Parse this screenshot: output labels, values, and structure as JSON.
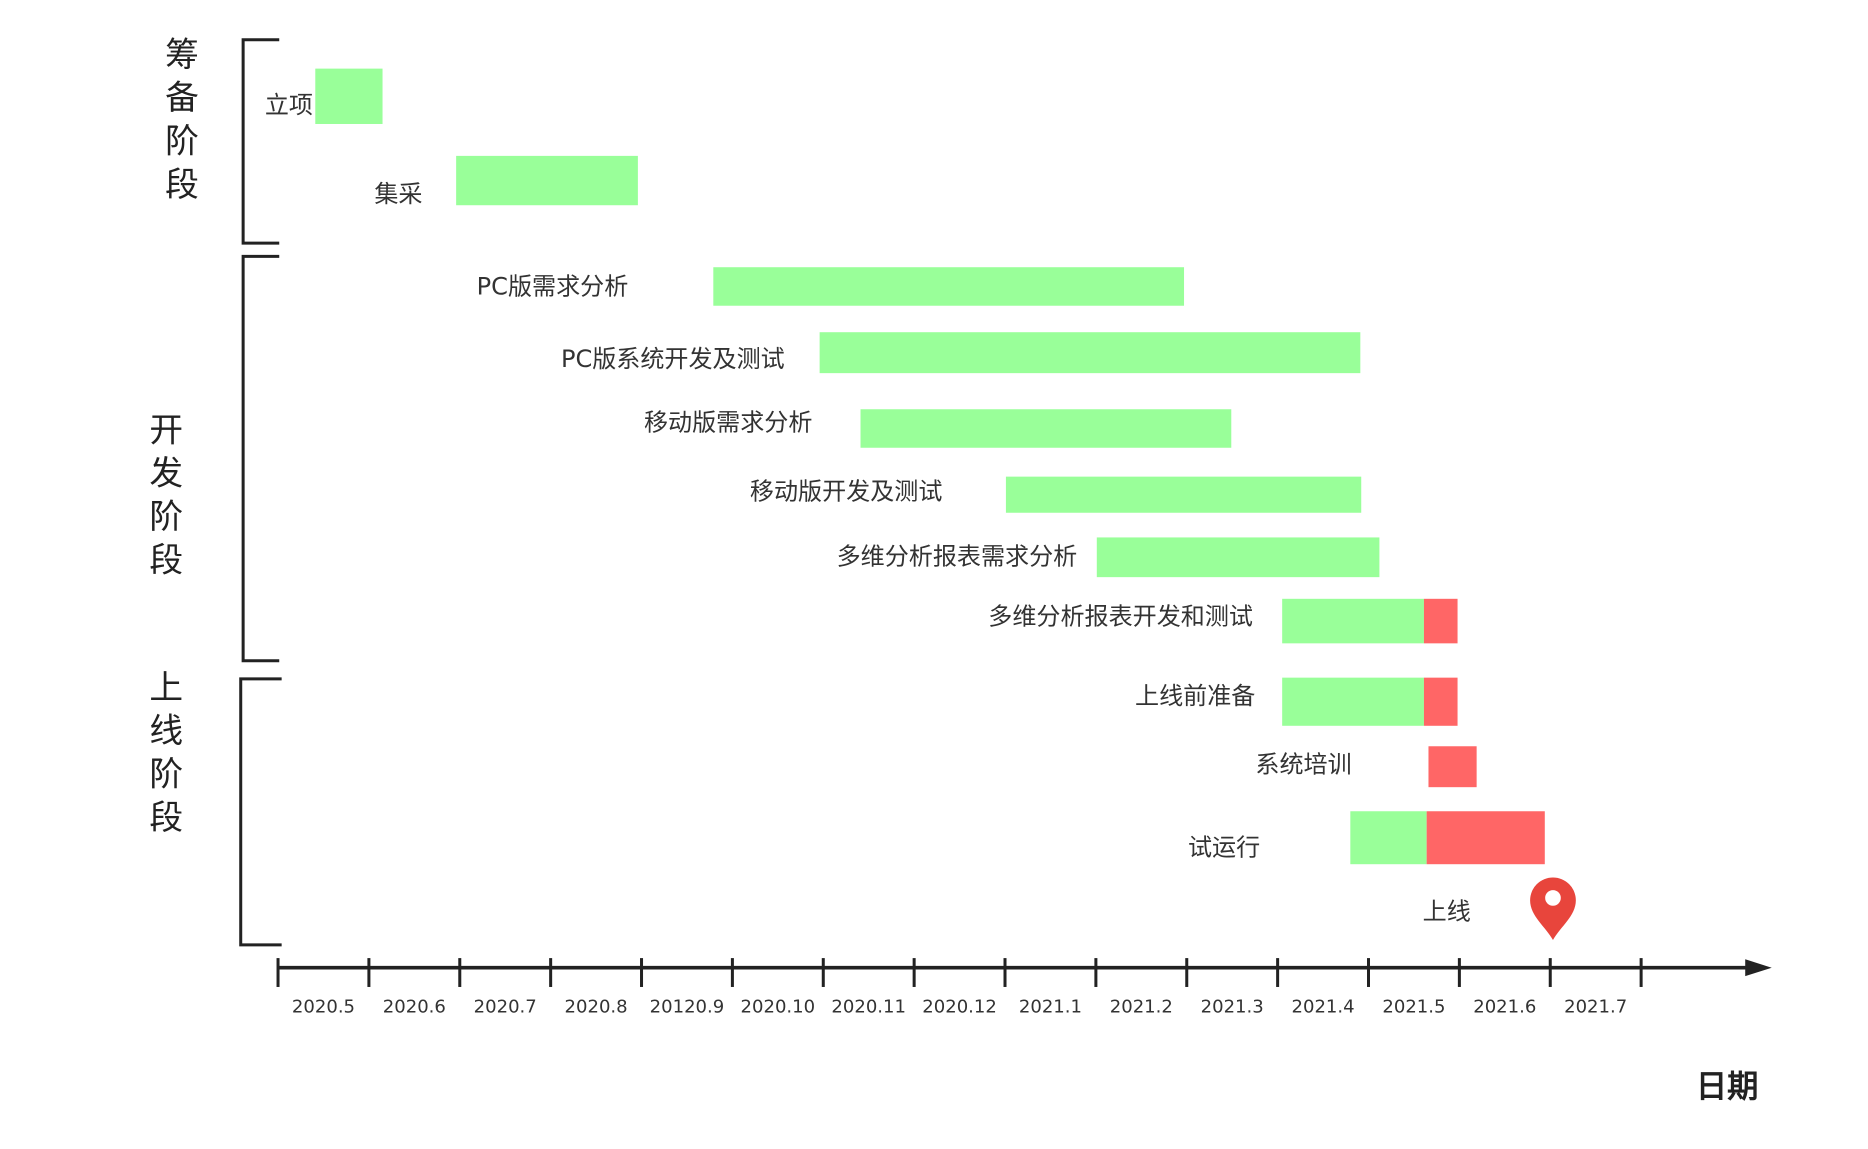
{
  "chart_data": {
    "type": "gantt",
    "x_label": "日期",
    "categories": [
      "2020.5",
      "2020.6",
      "2020.7",
      "2020.8",
      "20120.9",
      "2020.10",
      "2020.11",
      "2020.12",
      "2021.1",
      "2021.2",
      "2021.3",
      "2021.4",
      "2021.5",
      "2021.6",
      "2021.7"
    ],
    "xlim": [
      0,
      16.4
    ],
    "groups": [
      {
        "name": "筹备阶段",
        "tasks": [
          {
            "name": "立项",
            "segments": [
              {
                "start": 0.41,
                "end": 1.15,
                "color": "#99ff99"
              }
            ]
          },
          {
            "name": "集采",
            "segments": [
              {
                "start": 1.96,
                "end": 3.96,
                "color": "#99ff99"
              }
            ]
          }
        ]
      },
      {
        "name": "开发阶段",
        "tasks": [
          {
            "name": "PC版需求分析",
            "segments": [
              {
                "start": 4.79,
                "end": 9.97,
                "color": "#99ff99"
              }
            ]
          },
          {
            "name": "PC版系统开发及测试",
            "segments": [
              {
                "start": 5.96,
                "end": 11.91,
                "color": "#99ff99"
              }
            ]
          },
          {
            "name": "移动版需求分析",
            "segments": [
              {
                "start": 6.41,
                "end": 10.49,
                "color": "#99ff99"
              }
            ]
          },
          {
            "name": "移动版开发及测试",
            "segments": [
              {
                "start": 8.01,
                "end": 11.92,
                "color": "#99ff99"
              }
            ]
          },
          {
            "name": "多维分析报表需求分析",
            "segments": [
              {
                "start": 9.01,
                "end": 12.12,
                "color": "#99ff99"
              }
            ]
          },
          {
            "name": "多维分析报表开发和测试",
            "segments": [
              {
                "start": 11.05,
                "end": 12.61,
                "color": "#99ff99"
              },
              {
                "start": 12.61,
                "end": 12.98,
                "color": "#ff6666"
              }
            ]
          }
        ]
      },
      {
        "name": "上线阶段",
        "tasks": [
          {
            "name": "上线前准备",
            "segments": [
              {
                "start": 11.05,
                "end": 12.61,
                "color": "#99ff99"
              },
              {
                "start": 12.61,
                "end": 12.98,
                "color": "#ff6666"
              }
            ]
          },
          {
            "name": "系统培训",
            "segments": [
              {
                "start": 12.66,
                "end": 13.19,
                "color": "#ff6666"
              }
            ]
          },
          {
            "name": "试运行",
            "segments": [
              {
                "start": 11.8,
                "end": 12.64,
                "color": "#99ff99"
              },
              {
                "start": 12.64,
                "end": 13.94,
                "color": "#ff6666"
              }
            ]
          },
          {
            "name": "上线",
            "milestone": 14.03,
            "color": "#e8453c"
          }
        ]
      }
    ]
  }
}
